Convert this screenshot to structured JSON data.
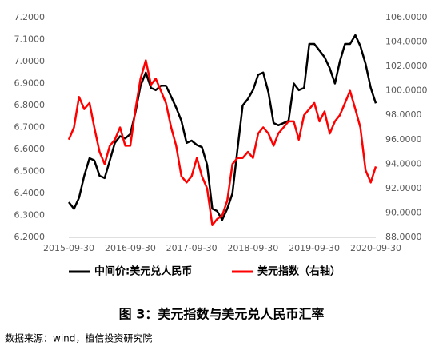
{
  "chart_data": {
    "type": "line",
    "title": "图 3：美元指数与美元兑人民币汇率",
    "source": "数据来源：wind，植信投资研究院",
    "x": [
      "2015-09-30",
      "2015-10-31",
      "2015-11-30",
      "2015-12-31",
      "2016-01-31",
      "2016-02-29",
      "2016-03-31",
      "2016-04-30",
      "2016-05-31",
      "2016-06-30",
      "2016-07-31",
      "2016-08-31",
      "2016-09-30",
      "2016-10-31",
      "2016-11-30",
      "2016-12-31",
      "2017-01-31",
      "2017-02-28",
      "2017-03-31",
      "2017-04-30",
      "2017-05-31",
      "2017-06-30",
      "2017-07-31",
      "2017-08-31",
      "2017-09-30",
      "2017-10-31",
      "2017-11-30",
      "2017-12-31",
      "2018-01-31",
      "2018-02-28",
      "2018-03-31",
      "2018-04-30",
      "2018-05-31",
      "2018-06-30",
      "2018-07-31",
      "2018-08-31",
      "2018-09-30",
      "2018-10-31",
      "2018-11-30",
      "2018-12-31",
      "2019-01-31",
      "2019-02-28",
      "2019-03-31",
      "2019-04-30",
      "2019-05-31",
      "2019-06-30",
      "2019-07-31",
      "2019-08-31",
      "2019-09-30",
      "2019-10-31",
      "2019-11-30",
      "2019-12-31",
      "2020-01-31",
      "2020-02-29",
      "2020-03-31",
      "2020-04-30",
      "2020-05-31",
      "2020-06-30",
      "2020-07-31",
      "2020-08-31",
      "2020-09-30"
    ],
    "series": [
      {
        "name": "中间价:美元兑人民币",
        "color": "#000000",
        "values": [
          6.36,
          6.33,
          6.38,
          6.48,
          6.56,
          6.55,
          6.48,
          6.47,
          6.55,
          6.63,
          6.66,
          6.65,
          6.67,
          6.77,
          6.89,
          6.95,
          6.88,
          6.87,
          6.89,
          6.89,
          6.84,
          6.79,
          6.73,
          6.63,
          6.64,
          6.62,
          6.61,
          6.53,
          6.33,
          6.32,
          6.28,
          6.33,
          6.4,
          6.6,
          6.8,
          6.83,
          6.87,
          6.94,
          6.95,
          6.86,
          6.72,
          6.71,
          6.72,
          6.73,
          6.9,
          6.87,
          6.88,
          7.08,
          7.08,
          7.05,
          7.02,
          6.97,
          6.9,
          7.0,
          7.08,
          7.08,
          7.12,
          7.07,
          6.99,
          6.88,
          6.81
        ]
      },
      {
        "name": "美元指数（右轴）",
        "color": "#ff0000",
        "axis": "y2",
        "values": [
          96,
          97,
          99.5,
          98.5,
          99,
          97,
          95,
          94,
          95.5,
          96,
          97,
          95.5,
          95.5,
          98.5,
          101,
          102.5,
          100.5,
          101,
          100,
          99,
          97,
          95.5,
          93,
          92.5,
          93,
          94.5,
          93,
          92,
          89,
          89.5,
          89.8,
          91,
          94,
          94.5,
          94.5,
          95,
          94.5,
          96.5,
          97,
          96.5,
          95.5,
          96.5,
          97,
          97.5,
          97.5,
          96,
          98,
          98.5,
          99,
          97.5,
          98.3,
          96.5,
          97.5,
          98,
          99,
          100,
          98.5,
          97,
          93.5,
          92.5,
          93.8
        ]
      }
    ],
    "xticks": [
      "2015-09-30",
      "2016-09-30",
      "2017-09-30",
      "2018-09-30",
      "2019-09-30",
      "2020-09-30"
    ],
    "ylim": [
      6.2,
      7.2
    ],
    "yticks": [
      {
        "value": 6.2,
        "label": "6.2000"
      },
      {
        "value": 6.3,
        "label": "6.3000"
      },
      {
        "value": 6.4,
        "label": "6.4000"
      },
      {
        "value": 6.5,
        "label": "6.5000"
      },
      {
        "value": 6.6,
        "label": "6.6000"
      },
      {
        "value": 6.7,
        "label": "6.7000"
      },
      {
        "value": 6.8,
        "label": "6.8000"
      },
      {
        "value": 6.9,
        "label": "6.9000"
      },
      {
        "value": 7,
        "label": "7.0000"
      },
      {
        "value": 7.1,
        "label": "7.1000"
      },
      {
        "value": 7.2,
        "label": "7.2000"
      }
    ],
    "y2lim": [
      88,
      106
    ],
    "y2ticks": [
      {
        "value": 88,
        "label": "88.0000"
      },
      {
        "value": 90,
        "label": "90.0000"
      },
      {
        "value": 92,
        "label": "92.0000"
      },
      {
        "value": 94,
        "label": "94.0000"
      },
      {
        "value": 96,
        "label": "96.0000"
      },
      {
        "value": 98,
        "label": "98.0000"
      },
      {
        "value": 100,
        "label": "100.0000"
      },
      {
        "value": 102,
        "label": "102.0000"
      },
      {
        "value": 104,
        "label": "104.0000"
      },
      {
        "value": 106,
        "label": "106.0000"
      }
    ],
    "grid": false
  }
}
